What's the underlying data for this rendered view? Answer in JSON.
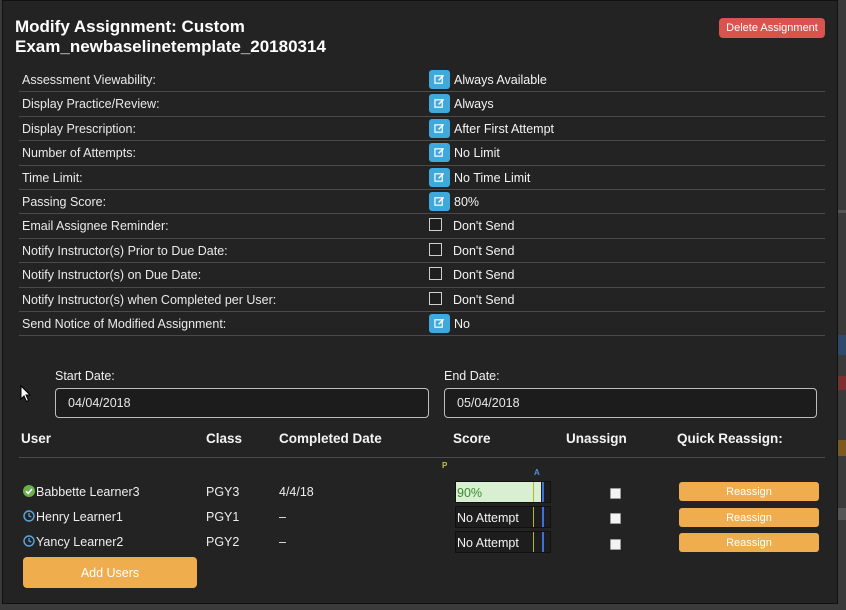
{
  "modal": {
    "title_line1": "Modify Assignment: Custom",
    "title_line2": "Exam_newbaselinetemplate_20180314",
    "delete_label": "Delete Assignment"
  },
  "settings": [
    {
      "label": "Assessment Viewability:",
      "value": "Always Available",
      "control": "edit-icon"
    },
    {
      "label": "Display Practice/Review:",
      "value": "Always",
      "control": "edit-icon"
    },
    {
      "label": "Display Prescription:",
      "value": "After First Attempt",
      "control": "edit-icon"
    },
    {
      "label": "Number of Attempts:",
      "value": "No Limit",
      "control": "edit-icon"
    },
    {
      "label": "Time Limit:",
      "value": "No Time Limit",
      "control": "edit-icon"
    },
    {
      "label": "Passing Score:",
      "value": "80%",
      "control": "edit-icon"
    },
    {
      "label": "Email Assignee Reminder:",
      "value": "Don't Send",
      "control": "checkbox"
    },
    {
      "label": "Notify Instructor(s) Prior to Due Date:",
      "value": "Don't Send",
      "control": "checkbox"
    },
    {
      "label": "Notify Instructor(s) on Due Date:",
      "value": "Don't Send",
      "control": "checkbox"
    },
    {
      "label": "Notify Instructor(s) when Completed per User:",
      "value": "Don't Send",
      "control": "checkbox"
    },
    {
      "label": "Send Notice of Modified Assignment:",
      "value": "No",
      "control": "edit-icon"
    }
  ],
  "dates": {
    "start_label": "Start Date:",
    "start_value": "04/04/2018",
    "end_label": "End Date:",
    "end_value": "05/04/2018"
  },
  "table": {
    "headers": {
      "user": "User",
      "class": "Class",
      "completed": "Completed Date",
      "score": "Score",
      "unassign": "Unassign",
      "quick": "Quick Reassign:"
    },
    "score_markers": {
      "pass": "P",
      "attempt": "A"
    },
    "rows": [
      {
        "status_icon": "check-circle-icon",
        "user": "Babbette Learner3",
        "class": "PGY3",
        "completed": "4/4/18",
        "score": "90%",
        "score_fraction": 0.9,
        "reassign": "Reassign"
      },
      {
        "status_icon": "clock-icon",
        "user": "Henry Learner1",
        "class": "PGY1",
        "completed": "–",
        "score": "No Attempt",
        "score_fraction": 0,
        "reassign": "Reassign"
      },
      {
        "status_icon": "clock-icon",
        "user": "Yancy Learner2",
        "class": "PGY2",
        "completed": "–",
        "score": "No Attempt",
        "score_fraction": 0,
        "reassign": "Reassign"
      }
    ]
  },
  "add_users_label": "Add Users",
  "colors": {
    "edit_icon": "#3fa9dc",
    "delete": "#d9534f",
    "reassign": "#f0ad4e",
    "score_fill": "#d8efd2",
    "complete": "#6ab04c",
    "pending": "#5aa7de"
  }
}
